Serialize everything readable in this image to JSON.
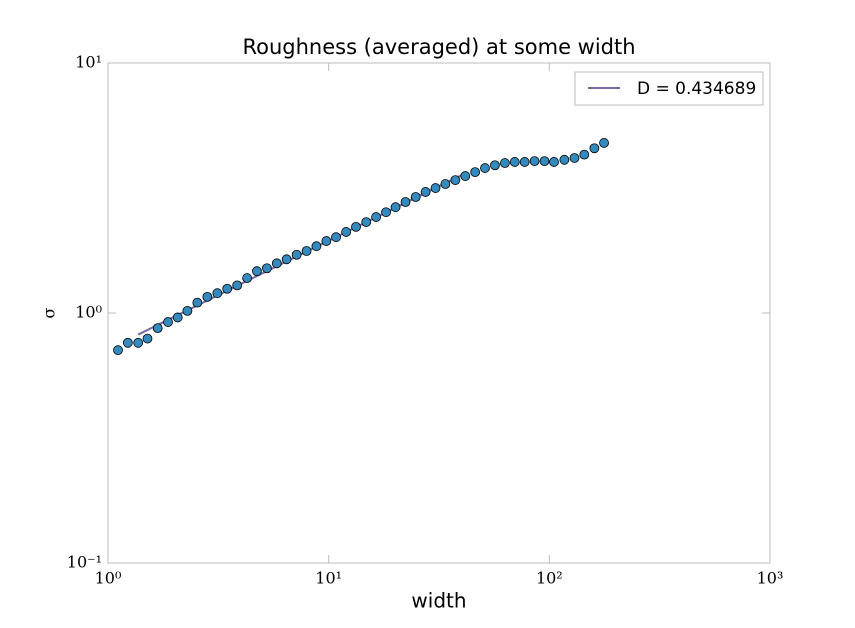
{
  "chart_data": {
    "type": "scatter",
    "title": "Roughness (averaged) at some width",
    "x_label": "width",
    "y_label": "σ",
    "log_x": true,
    "log_y": true,
    "xlim": [
      1,
      1000
    ],
    "ylim": [
      0.1,
      10
    ],
    "xticks": [
      {
        "value": 1,
        "label": "10⁰"
      },
      {
        "value": 10,
        "label": "10¹"
      },
      {
        "value": 100,
        "label": "10²"
      },
      {
        "value": 1000,
        "label": "10³"
      }
    ],
    "yticks": [
      {
        "value": 0.1,
        "label": "10⁻¹"
      },
      {
        "value": 1,
        "label": "10⁰"
      },
      {
        "value": 10,
        "label": "10¹"
      }
    ],
    "legend_position": "upper right",
    "series": [
      {
        "color": "#348ABD",
        "x": [
          1.11,
          1.23,
          1.37,
          1.51,
          1.68,
          1.87,
          2.07,
          2.29,
          2.54,
          2.82,
          3.13,
          3.47,
          3.85,
          4.27,
          4.73,
          5.25,
          5.82,
          6.45,
          7.16,
          7.94,
          8.8,
          9.76,
          10.8,
          12.0,
          13.3,
          14.8,
          16.4,
          18.2,
          20.1,
          22.3,
          24.8,
          27.5,
          30.5,
          33.8,
          37.5,
          41.6,
          46.1,
          51.1,
          56.7,
          62.9,
          69.7,
          77.3,
          85.7,
          95.1,
          105,
          117,
          130,
          144,
          160,
          177
        ],
        "values": [
          0.71,
          0.76,
          0.76,
          0.79,
          0.87,
          0.92,
          0.96,
          1.02,
          1.1,
          1.16,
          1.2,
          1.25,
          1.29,
          1.38,
          1.47,
          1.51,
          1.58,
          1.64,
          1.71,
          1.77,
          1.85,
          1.94,
          2.01,
          2.11,
          2.21,
          2.31,
          2.42,
          2.53,
          2.65,
          2.78,
          2.91,
          3.05,
          3.16,
          3.28,
          3.4,
          3.53,
          3.66,
          3.8,
          3.9,
          3.98,
          4.02,
          4.02,
          4.05,
          4.05,
          4.02,
          4.1,
          4.17,
          4.3,
          4.56,
          4.79
        ]
      }
    ],
    "fit": {
      "name": "D = 0.434689",
      "color": "#7A68A6",
      "x": [
        1.37,
        41.6
      ],
      "values": [
        0.82,
        3.62
      ]
    }
  }
}
